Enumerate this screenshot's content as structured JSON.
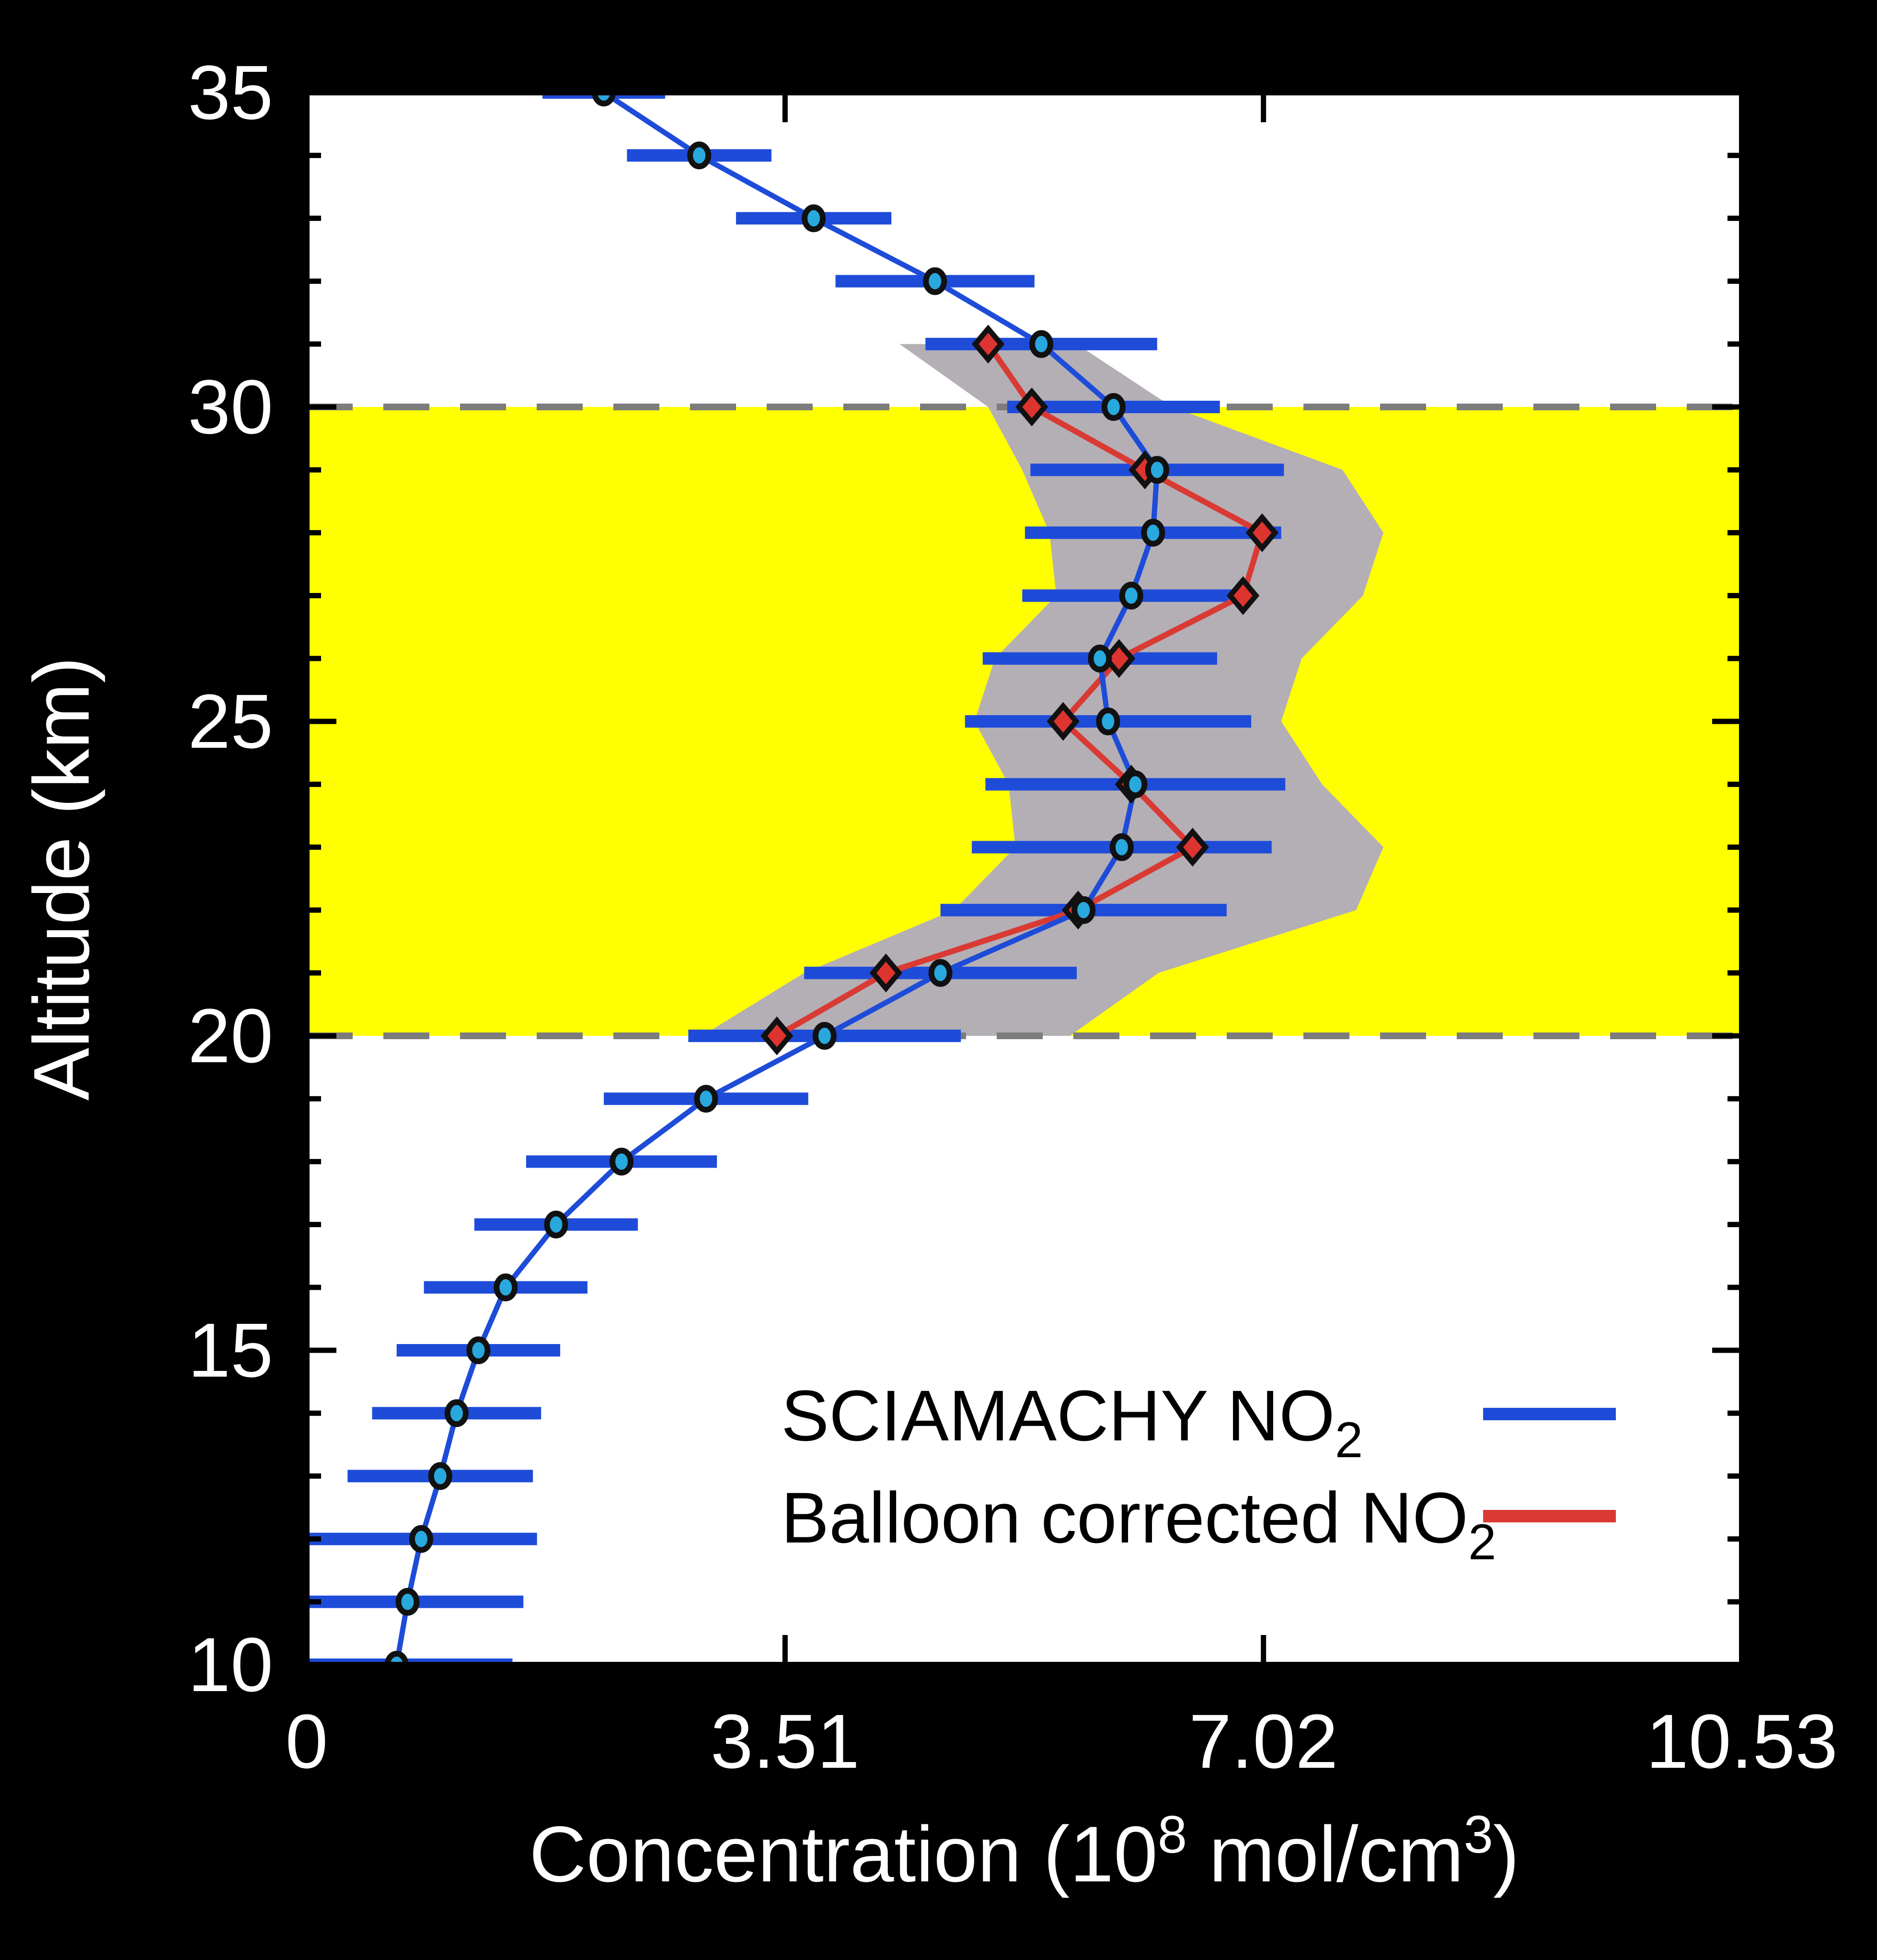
{
  "page": {
    "background": "#000000",
    "plot_background": "#ffffff"
  },
  "legend": {
    "position": "lower-right-inside",
    "items": [
      {
        "label_main": "SCIAMACHY NO",
        "label_sub": "2",
        "swatch_color": "#1e4cd9"
      },
      {
        "label_main": "Balloon corrected NO",
        "label_sub": "2",
        "swatch_color": "#d93a33"
      }
    ]
  },
  "chart_data": {
    "type": "line",
    "title": "",
    "xlabel": {
      "pre": "Concentration (10",
      "sup1": "8",
      "mid": " mol/cm",
      "sup2": "3",
      "post": ")"
    },
    "ylabel": "Altitude (km)",
    "xlim": [
      0,
      10.53
    ],
    "ylim": [
      10,
      35
    ],
    "grid": false,
    "xticks": [
      {
        "value": 0,
        "label": "0"
      },
      {
        "value": 3.51,
        "label": "3.51"
      },
      {
        "value": 7.02,
        "label": "7.02"
      },
      {
        "value": 10.53,
        "label": "10.53"
      }
    ],
    "yticks_major": [
      {
        "value": 10,
        "label": "10"
      },
      {
        "value": 15,
        "label": "15"
      },
      {
        "value": 20,
        "label": "20"
      },
      {
        "value": 25,
        "label": "25"
      },
      {
        "value": 30,
        "label": "30"
      },
      {
        "value": 35,
        "label": "35"
      }
    ],
    "y_minor_step": 1,
    "highlight_band": {
      "alt_min": 20,
      "alt_max": 30,
      "color": "#ffff00"
    },
    "dashed_levels": {
      "values": [
        20,
        30
      ],
      "color": "#7c7c7c"
    },
    "series": [
      {
        "name": "SCIAMACHY NO2",
        "line_color": "#1e4cd9",
        "marker": "circle",
        "marker_fill": "#29a8dd",
        "marker_edge": "#111111",
        "points": [
          {
            "alt": 35,
            "value": 2.18,
            "err": 0.45
          },
          {
            "alt": 34,
            "value": 2.88,
            "err": 0.53
          },
          {
            "alt": 33,
            "value": 3.72,
            "err": 0.57
          },
          {
            "alt": 32,
            "value": 4.61,
            "err": 0.73
          },
          {
            "alt": 31,
            "value": 5.39,
            "err": 0.85
          },
          {
            "alt": 30,
            "value": 5.92,
            "err": 0.78
          },
          {
            "alt": 29,
            "value": 6.24,
            "err": 0.93
          },
          {
            "alt": 28,
            "value": 6.21,
            "err": 0.94
          },
          {
            "alt": 27,
            "value": 6.05,
            "err": 0.8
          },
          {
            "alt": 26,
            "value": 5.82,
            "err": 0.86
          },
          {
            "alt": 25,
            "value": 5.88,
            "err": 1.05
          },
          {
            "alt": 24,
            "value": 6.08,
            "err": 1.1
          },
          {
            "alt": 23,
            "value": 5.98,
            "err": 1.1
          },
          {
            "alt": 22,
            "value": 5.7,
            "err": 1.05
          },
          {
            "alt": 21,
            "value": 4.65,
            "err": 1.0
          },
          {
            "alt": 20,
            "value": 3.8,
            "err": 1.0
          },
          {
            "alt": 19,
            "value": 2.93,
            "err": 0.75
          },
          {
            "alt": 18,
            "value": 2.31,
            "err": 0.7
          },
          {
            "alt": 17,
            "value": 1.83,
            "err": 0.6
          },
          {
            "alt": 16,
            "value": 1.46,
            "err": 0.6
          },
          {
            "alt": 15,
            "value": 1.26,
            "err": 0.6
          },
          {
            "alt": 14,
            "value": 1.1,
            "err": 0.62
          },
          {
            "alt": 13,
            "value": 0.98,
            "err": 0.68
          },
          {
            "alt": 12,
            "value": 0.84,
            "err": 0.85
          },
          {
            "alt": 11,
            "value": 0.74,
            "err": 0.85
          },
          {
            "alt": 10,
            "value": 0.66,
            "err": 0.85
          }
        ]
      },
      {
        "name": "Balloon corrected NO2",
        "line_color": "#d93a33",
        "marker": "diamond",
        "marker_fill": "#dd342f",
        "marker_edge": "#111111",
        "uncertainty_color": "#b3afb5",
        "points": [
          {
            "alt": 31,
            "value": 5.0,
            "low": 4.35,
            "high": 5.65
          },
          {
            "alt": 30,
            "value": 5.32,
            "low": 5.0,
            "high": 6.35
          },
          {
            "alt": 29,
            "value": 6.15,
            "low": 5.25,
            "high": 7.6
          },
          {
            "alt": 28,
            "value": 7.01,
            "low": 5.45,
            "high": 7.9
          },
          {
            "alt": 27,
            "value": 6.87,
            "low": 5.5,
            "high": 7.75
          },
          {
            "alt": 26,
            "value": 5.96,
            "low": 5.05,
            "high": 7.3
          },
          {
            "alt": 25,
            "value": 5.55,
            "low": 4.9,
            "high": 7.15
          },
          {
            "alt": 24,
            "value": 6.05,
            "low": 5.15,
            "high": 7.45
          },
          {
            "alt": 23,
            "value": 6.5,
            "low": 5.2,
            "high": 7.9
          },
          {
            "alt": 22,
            "value": 5.66,
            "low": 4.75,
            "high": 7.7
          },
          {
            "alt": 21,
            "value": 4.25,
            "low": 3.65,
            "high": 6.25
          },
          {
            "alt": 20,
            "value": 3.45,
            "low": 2.9,
            "high": 5.6
          }
        ]
      }
    ]
  }
}
